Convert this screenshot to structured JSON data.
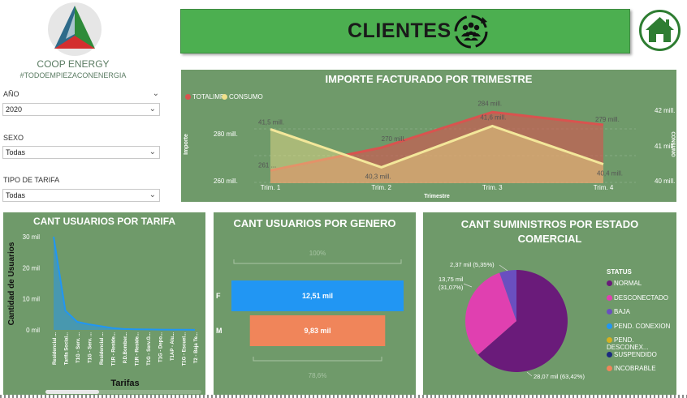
{
  "brand": {
    "name": "COOP ENERGY",
    "hashtag": "#TODOEMPIEZACONENERGIA"
  },
  "filters": [
    {
      "label": "AÑO",
      "value": "2020"
    },
    {
      "label": "SEXO",
      "value": "Todas"
    },
    {
      "label": "TIPO DE TARIFA",
      "value": "Todas"
    }
  ],
  "header": {
    "title": "CLIENTES",
    "home_icon": "home-icon",
    "clients_icon": "group-icon"
  },
  "colors": {
    "panel": "#6f9a6a",
    "header": "#4caf50",
    "totalimp": "#d9534f",
    "consumo": "#f0e08a",
    "blue": "#2196f3",
    "orange": "#f0855a",
    "normal": "#6a1b7a",
    "desconectado": "#e040b0",
    "baja": "#6a4fc0"
  },
  "importe": {
    "title": "IMPORTE FACTURADO POR TRIMESTRE",
    "legend": [
      "TOTALIMP",
      "CONSUMO"
    ],
    "y_left_label": "Importe",
    "y_right_label": "CONSUMO",
    "x_label": "Trimestre",
    "y_left_ticks": [
      "280 mill.",
      "260 mill."
    ],
    "y_right_ticks": [
      "42 mill.",
      "41 mill.",
      "40 mill."
    ],
    "chart_data": {
      "type": "line",
      "categories": [
        "Trim. 1",
        "Trim. 2",
        "Trim. 3",
        "Trim. 4"
      ],
      "series": [
        {
          "name": "TOTALIMP",
          "values": [
            261,
            270,
            284,
            279
          ],
          "labels": [
            "261 ...",
            "270 mill.",
            "284 mill.",
            "279 mill."
          ],
          "axis": "left",
          "ylim": [
            256,
            286
          ]
        },
        {
          "name": "CONSUMO",
          "values": [
            41.5,
            40.3,
            41.6,
            40.4
          ],
          "labels": [
            "41,5 mill.",
            "40,3 mill.",
            "41,6 mill.",
            "40,4 mill."
          ],
          "axis": "right",
          "ylim": [
            39.8,
            42.2
          ]
        }
      ]
    }
  },
  "tarifa": {
    "title": "CANT USUARIOS POR TARIFA",
    "ylabel": "Cantidad de Usuarios",
    "xlabel": "Tarifas",
    "y_ticks": [
      "30 mil",
      "20 mil",
      "10 mil",
      "0 mil"
    ],
    "chart_data": {
      "type": "area",
      "categories": [
        "Residencial ...",
        "Tarifa Social...",
        "T1G - Serv. ...",
        "T1G - Serv. ...",
        "Residencial ...",
        "T1R - Reside...",
        "P.D.Bomber...",
        "T1R - Reside...",
        "T1G - Serv.G...",
        "T1G - Depo...",
        "T1AP - Alu...",
        "T1G - Escuel...",
        "T2 - Baja Te..."
      ],
      "values": [
        30,
        6.2,
        2.6,
        1.8,
        1.2,
        0.6,
        0.3,
        0.2,
        0.15,
        0.1,
        0.08,
        0.05,
        0.03
      ],
      "ylim": [
        0,
        30
      ]
    }
  },
  "genero": {
    "title": "CANT USUARIOS POR GENERO",
    "top_pct": "100%",
    "bottom_pct": "78,6%",
    "chart_data": {
      "type": "bar",
      "categories": [
        "F",
        "M"
      ],
      "values": [
        12.51,
        9.83
      ],
      "labels": [
        "12,51 mil",
        "9,83 mil"
      ]
    }
  },
  "estado": {
    "title": "CANT SUMINISTROS POR ESTADO COMERCIAL",
    "legend_title": "STATUS",
    "chart_data": {
      "type": "pie",
      "categories": [
        "NORMAL",
        "DESCONECTADO",
        "BAJA",
        "PEND. CONEXION",
        "PEND. DESCONEX...",
        "SUSPENDIDO",
        "INCOBRABLE"
      ],
      "values": [
        28.07,
        13.75,
        2.37,
        0,
        0,
        0,
        0
      ],
      "percent": [
        63.42,
        31.07,
        5.35,
        0,
        0,
        0,
        0
      ],
      "colors": [
        "#6a1b7a",
        "#e040b0",
        "#6a4fc0",
        "#2196f3",
        "#d4b020",
        "#1a2a80",
        "#f0855a"
      ],
      "labels": [
        "28,07 mil (63,42%)",
        "13,75 mil\n(31,07%)",
        "2,37 mil (5,35%)"
      ]
    }
  }
}
